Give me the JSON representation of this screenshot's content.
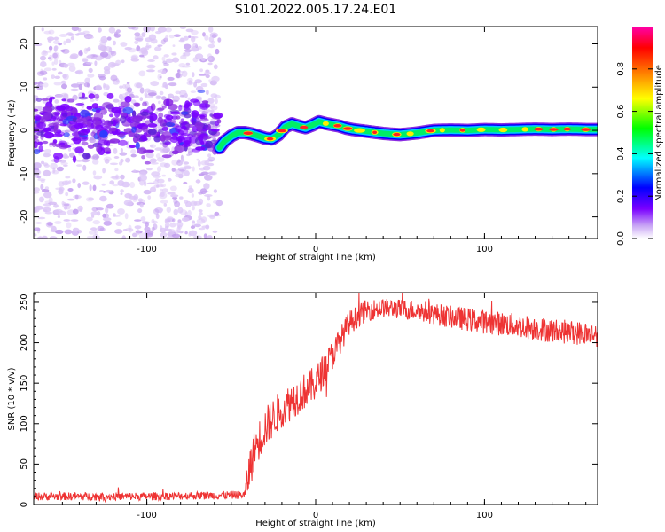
{
  "title": "S101.2022.005.17.24.E01",
  "chart_data": [
    {
      "type": "heatmap",
      "xlabel": "Height of straight line (km)",
      "ylabel": "Frequency (Hz)",
      "xlim": [
        -167,
        167
      ],
      "ylim": [
        -25,
        24
      ],
      "x_ticks": [
        -100,
        0,
        100
      ],
      "y_ticks": [
        -20,
        -10,
        0,
        10,
        20
      ],
      "colorbar": {
        "label": "Normalized spectral amplitude",
        "range": [
          0,
          1
        ],
        "ticks": [
          0,
          0.2,
          0.4,
          0.6,
          0.8
        ],
        "colors": [
          "#ffffff",
          "#c9a6f5",
          "#7a00ff",
          "#0000ff",
          "#00ffff",
          "#00ff00",
          "#ffff00",
          "#ff7f00",
          "#ff0000",
          "#ff00aa"
        ]
      },
      "ridge": {
        "x": [
          -57,
          -54,
          -50,
          -46,
          -42,
          -38,
          -34,
          -30,
          -26,
          -22,
          -18,
          -14,
          -10,
          -6,
          -2,
          2,
          6,
          10,
          14,
          18,
          22,
          30,
          40,
          50,
          60,
          70,
          80,
          90,
          100,
          110,
          120,
          130,
          140,
          150,
          160,
          167
        ],
        "y": [
          -4.0,
          -2.5,
          -1.3,
          -0.5,
          -0.5,
          -0.8,
          -1.3,
          -1.8,
          -2.0,
          -1.0,
          0.8,
          1.5,
          1.0,
          0.6,
          1.2,
          2.0,
          1.6,
          1.3,
          1.0,
          0.5,
          0.2,
          -0.2,
          -0.7,
          -1.0,
          -0.6,
          0.0,
          0.1,
          0.0,
          0.2,
          0.1,
          0.2,
          0.3,
          0.2,
          0.3,
          0.2,
          0.2
        ]
      },
      "noise_region": {
        "x_range": [
          -167,
          -57
        ],
        "band_center": 1,
        "band_halfwidth": 5
      }
    },
    {
      "type": "line",
      "xlabel": "Height of straight line (km)",
      "ylabel": "SNR (10 * v/v)",
      "xlim": [
        -167,
        167
      ],
      "ylim": [
        0,
        262
      ],
      "x_ticks": [
        -100,
        0,
        100
      ],
      "y_ticks": [
        0,
        50,
        100,
        150,
        200,
        250
      ],
      "color": "#ee3333",
      "envelope": {
        "x": [
          -167,
          -100,
          -42,
          -40,
          -36,
          -30,
          -22,
          -10,
          0,
          10,
          20,
          30,
          40,
          60,
          80,
          100,
          120,
          140,
          167
        ],
        "y": [
          10,
          10,
          12,
          35,
          70,
          95,
          115,
          135,
          150,
          185,
          225,
          240,
          243,
          240,
          232,
          226,
          221,
          215,
          210
        ]
      },
      "noise": {
        "x": [
          -167,
          -42,
          -40,
          0,
          20,
          40,
          100,
          167
        ],
        "amp": [
          5,
          5,
          26,
          22,
          15,
          12,
          15,
          15
        ]
      }
    }
  ]
}
